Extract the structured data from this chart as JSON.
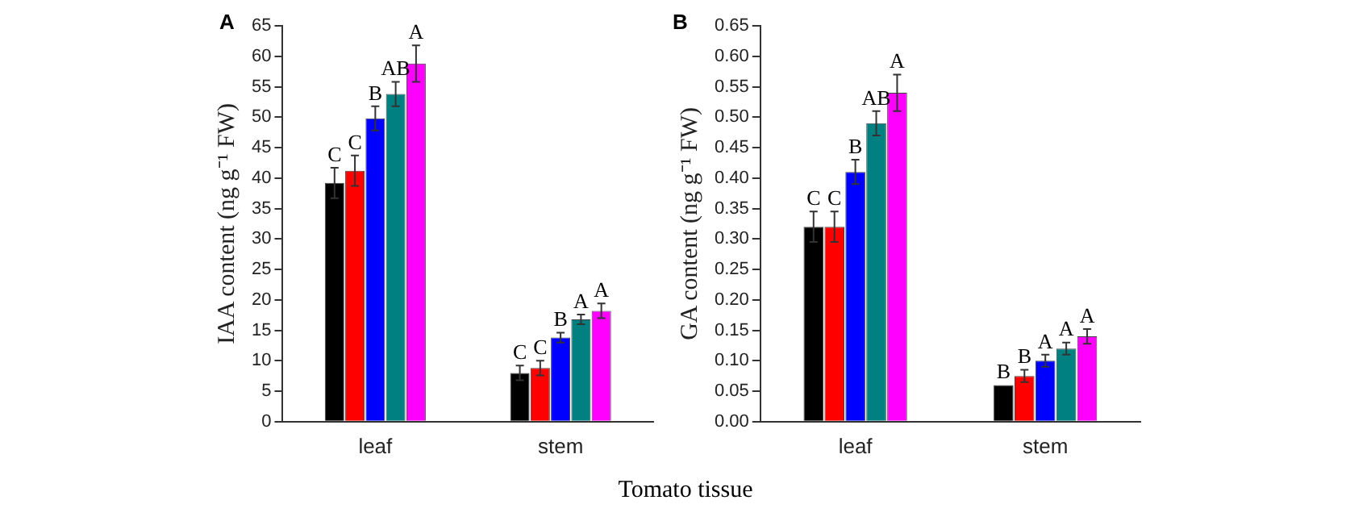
{
  "chart_data": [
    {
      "type": "bar",
      "title": "A",
      "ylabel": "IAA content (ng g⁻¹ FW)",
      "xlabel": "Tomato tissue",
      "categories": [
        "leaf",
        "stem"
      ],
      "series": [
        {
          "color": "#000000",
          "values": [
            39.2,
            8
          ],
          "errors": [
            2.5,
            1.2
          ]
        },
        {
          "color": "#ff0000",
          "values": [
            41.2,
            8.8
          ],
          "errors": [
            2.5,
            1.2
          ]
        },
        {
          "color": "#0000ff",
          "values": [
            49.8,
            13.8
          ],
          "errors": [
            2,
            0.8
          ]
        },
        {
          "color": "#008080",
          "values": [
            53.8,
            16.8
          ],
          "errors": [
            2,
            0.8
          ]
        },
        {
          "color": "#ff00ff",
          "values": [
            58.8,
            18.2
          ],
          "errors": [
            3,
            1.2
          ]
        }
      ],
      "ylim": [
        0,
        65
      ],
      "yticks": [
        0,
        5,
        10,
        15,
        20,
        25,
        30,
        35,
        40,
        45,
        50,
        55,
        60,
        65
      ],
      "grid": false,
      "annotations": [
        "C",
        "C",
        "B",
        "AB",
        "A",
        "C",
        "C",
        "B",
        "A",
        "A"
      ]
    },
    {
      "type": "bar",
      "title": "B",
      "ylabel": "GA content (ng g⁻¹ FW)",
      "categories": [
        "leaf",
        "stem"
      ],
      "series": [
        {
          "color": "#000000",
          "values": [
            0.32,
            0.06
          ],
          "errors": [
            0.025,
            null
          ]
        },
        {
          "color": "#ff0000",
          "values": [
            0.32,
            0.075
          ],
          "errors": [
            0.025,
            0.01
          ]
        },
        {
          "color": "#0000ff",
          "values": [
            0.41,
            0.1
          ],
          "errors": [
            0.02,
            0.01
          ]
        },
        {
          "color": "#008080",
          "values": [
            0.49,
            0.12
          ],
          "errors": [
            0.02,
            0.01
          ]
        },
        {
          "color": "#ff00ff",
          "values": [
            0.54,
            0.14
          ],
          "errors": [
            0.03,
            0.012
          ]
        }
      ],
      "ylim": [
        0,
        0.65
      ],
      "yticks": [
        {
          "value": 0,
          "label": "0.00"
        },
        0.05,
        {
          "value": 0.1,
          "label": "0.10"
        },
        0.15,
        {
          "value": 0.2,
          "label": "0.20"
        },
        0.25,
        {
          "value": 0.3,
          "label": "0.30"
        },
        0.35,
        {
          "value": 0.4,
          "label": "0.40"
        },
        0.45,
        {
          "value": 0.5,
          "label": "0.50"
        },
        0.55,
        {
          "value": 0.6,
          "label": "0.60"
        },
        0.65
      ],
      "grid": false,
      "annotations": [
        "C",
        "C",
        "B",
        "AB",
        "A",
        "B",
        "B",
        "A",
        "A",
        "A"
      ]
    }
  ]
}
